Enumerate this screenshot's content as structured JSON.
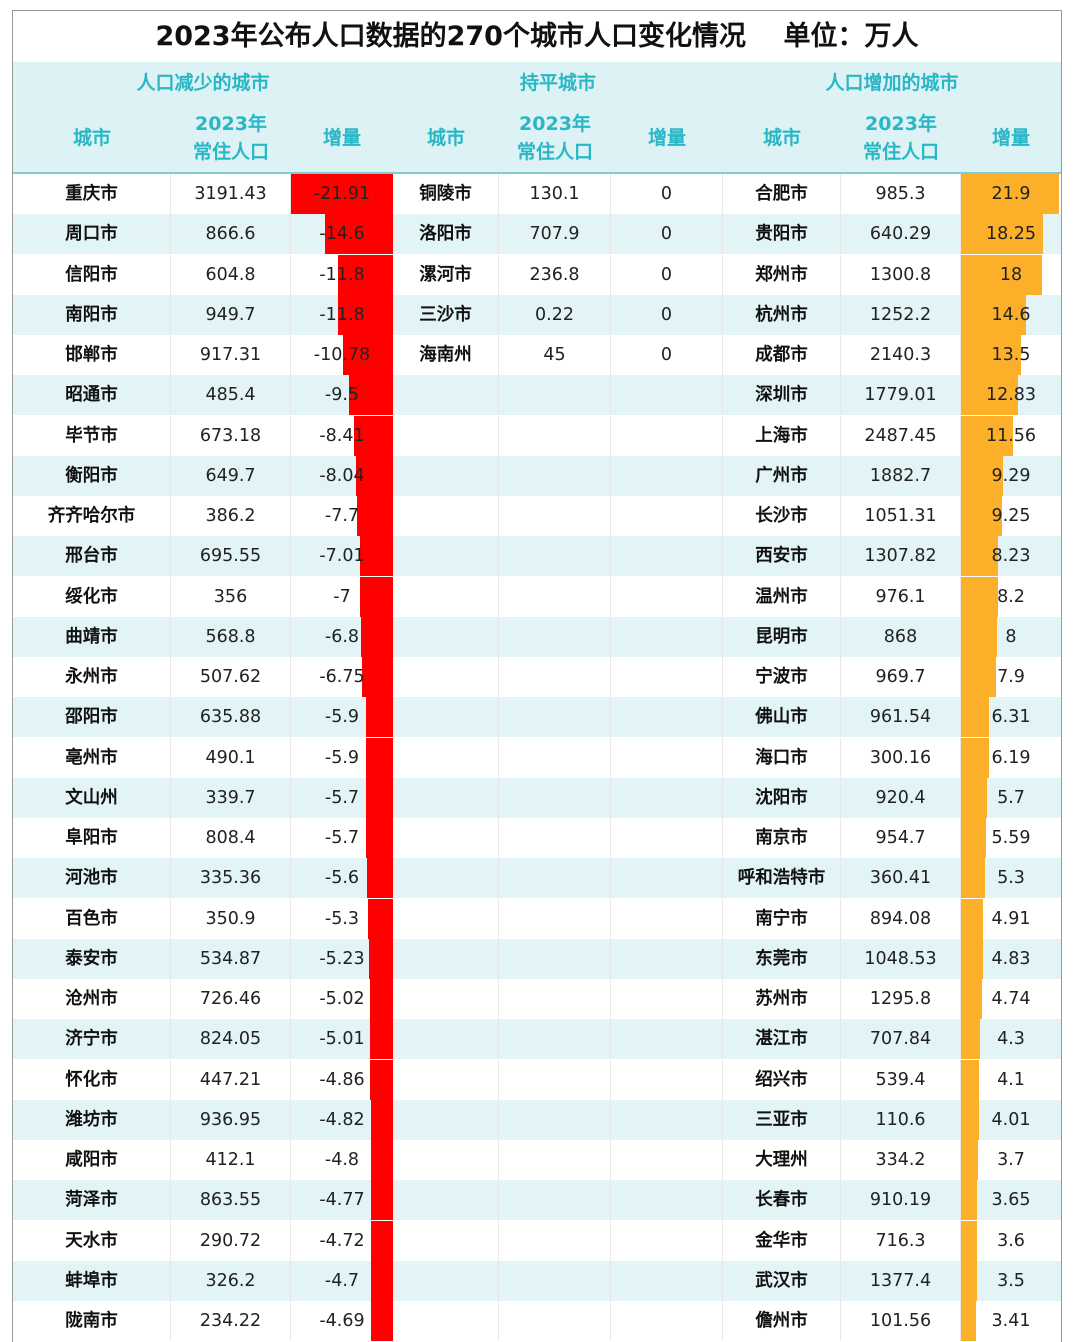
{
  "title": "2023年公布人口数据的270个城市人口变化情况    单位：万人",
  "groups": {
    "decrease": "人口减少的城市",
    "flat": "持平城市",
    "increase": "人口增加的城市"
  },
  "columns": {
    "city": "城市",
    "pop": "2023年\n常住人口",
    "change": "增量"
  },
  "colors": {
    "negative_bar": "#ff0000",
    "positive_bar": "#fcb02a",
    "header_text": "#29b7c6",
    "header_bg": "#dcf2f5"
  },
  "bar_scale": {
    "negative_max": 21.91,
    "positive_max": 21.9
  },
  "decrease_rows": [
    {
      "city": "重庆市",
      "pop": "3191.43",
      "change": "-21.91"
    },
    {
      "city": "周口市",
      "pop": "866.6",
      "change": "-14.6"
    },
    {
      "city": "信阳市",
      "pop": "604.8",
      "change": "-11.8"
    },
    {
      "city": "南阳市",
      "pop": "949.7",
      "change": "-11.8"
    },
    {
      "city": "邯郸市",
      "pop": "917.31",
      "change": "-10.78"
    },
    {
      "city": "昭通市",
      "pop": "485.4",
      "change": "-9.5"
    },
    {
      "city": "毕节市",
      "pop": "673.18",
      "change": "-8.41"
    },
    {
      "city": "衡阳市",
      "pop": "649.7",
      "change": "-8.04"
    },
    {
      "city": "齐齐哈尔市",
      "pop": "386.2",
      "change": "-7.7"
    },
    {
      "city": "邢台市",
      "pop": "695.55",
      "change": "-7.01"
    },
    {
      "city": "绥化市",
      "pop": "356",
      "change": "-7"
    },
    {
      "city": "曲靖市",
      "pop": "568.8",
      "change": "-6.8"
    },
    {
      "city": "永州市",
      "pop": "507.62",
      "change": "-6.75"
    },
    {
      "city": "邵阳市",
      "pop": "635.88",
      "change": "-5.9"
    },
    {
      "city": "亳州市",
      "pop": "490.1",
      "change": "-5.9"
    },
    {
      "city": "文山州",
      "pop": "339.7",
      "change": "-5.7"
    },
    {
      "city": "阜阳市",
      "pop": "808.4",
      "change": "-5.7"
    },
    {
      "city": "河池市",
      "pop": "335.36",
      "change": "-5.6"
    },
    {
      "city": "百色市",
      "pop": "350.9",
      "change": "-5.3"
    },
    {
      "city": "泰安市",
      "pop": "534.87",
      "change": "-5.23"
    },
    {
      "city": "沧州市",
      "pop": "726.46",
      "change": "-5.02"
    },
    {
      "city": "济宁市",
      "pop": "824.05",
      "change": "-5.01"
    },
    {
      "city": "怀化市",
      "pop": "447.21",
      "change": "-4.86"
    },
    {
      "city": "潍坊市",
      "pop": "936.95",
      "change": "-4.82"
    },
    {
      "city": "咸阳市",
      "pop": "412.1",
      "change": "-4.8"
    },
    {
      "city": "菏泽市",
      "pop": "863.55",
      "change": "-4.77"
    },
    {
      "city": "天水市",
      "pop": "290.72",
      "change": "-4.72"
    },
    {
      "city": "蚌埠市",
      "pop": "326.2",
      "change": "-4.7"
    },
    {
      "city": "陇南市",
      "pop": "234.22",
      "change": "-4.69"
    }
  ],
  "flat_rows": [
    {
      "city": "铜陵市",
      "pop": "130.1",
      "change": "0"
    },
    {
      "city": "洛阳市",
      "pop": "707.9",
      "change": "0"
    },
    {
      "city": "漯河市",
      "pop": "236.8",
      "change": "0"
    },
    {
      "city": "三沙市",
      "pop": "0.22",
      "change": "0"
    },
    {
      "city": "海南州",
      "pop": "45",
      "change": "0"
    }
  ],
  "increase_rows": [
    {
      "city": "合肥市",
      "pop": "985.3",
      "change": "21.9"
    },
    {
      "city": "贵阳市",
      "pop": "640.29",
      "change": "18.25"
    },
    {
      "city": "郑州市",
      "pop": "1300.8",
      "change": "18"
    },
    {
      "city": "杭州市",
      "pop": "1252.2",
      "change": "14.6"
    },
    {
      "city": "成都市",
      "pop": "2140.3",
      "change": "13.5"
    },
    {
      "city": "深圳市",
      "pop": "1779.01",
      "change": "12.83"
    },
    {
      "city": "上海市",
      "pop": "2487.45",
      "change": "11.56"
    },
    {
      "city": "广州市",
      "pop": "1882.7",
      "change": "9.29"
    },
    {
      "city": "长沙市",
      "pop": "1051.31",
      "change": "9.25"
    },
    {
      "city": "西安市",
      "pop": "1307.82",
      "change": "8.23"
    },
    {
      "city": "温州市",
      "pop": "976.1",
      "change": "8.2"
    },
    {
      "city": "昆明市",
      "pop": "868",
      "change": "8"
    },
    {
      "city": "宁波市",
      "pop": "969.7",
      "change": "7.9"
    },
    {
      "city": "佛山市",
      "pop": "961.54",
      "change": "6.31"
    },
    {
      "city": "海口市",
      "pop": "300.16",
      "change": "6.19"
    },
    {
      "city": "沈阳市",
      "pop": "920.4",
      "change": "5.7"
    },
    {
      "city": "南京市",
      "pop": "954.7",
      "change": "5.59"
    },
    {
      "city": "呼和浩特市",
      "pop": "360.41",
      "change": "5.3"
    },
    {
      "city": "南宁市",
      "pop": "894.08",
      "change": "4.91"
    },
    {
      "city": "东莞市",
      "pop": "1048.53",
      "change": "4.83"
    },
    {
      "city": "苏州市",
      "pop": "1295.8",
      "change": "4.74"
    },
    {
      "city": "湛江市",
      "pop": "707.84",
      "change": "4.3"
    },
    {
      "city": "绍兴市",
      "pop": "539.4",
      "change": "4.1"
    },
    {
      "city": "三亚市",
      "pop": "110.6",
      "change": "4.01"
    },
    {
      "city": "大理州",
      "pop": "334.2",
      "change": "3.7"
    },
    {
      "city": "长春市",
      "pop": "910.19",
      "change": "3.65"
    },
    {
      "city": "金华市",
      "pop": "716.3",
      "change": "3.6"
    },
    {
      "city": "武汉市",
      "pop": "1377.4",
      "change": "3.5"
    },
    {
      "city": "儋州市",
      "pop": "101.56",
      "change": "3.41"
    }
  ]
}
